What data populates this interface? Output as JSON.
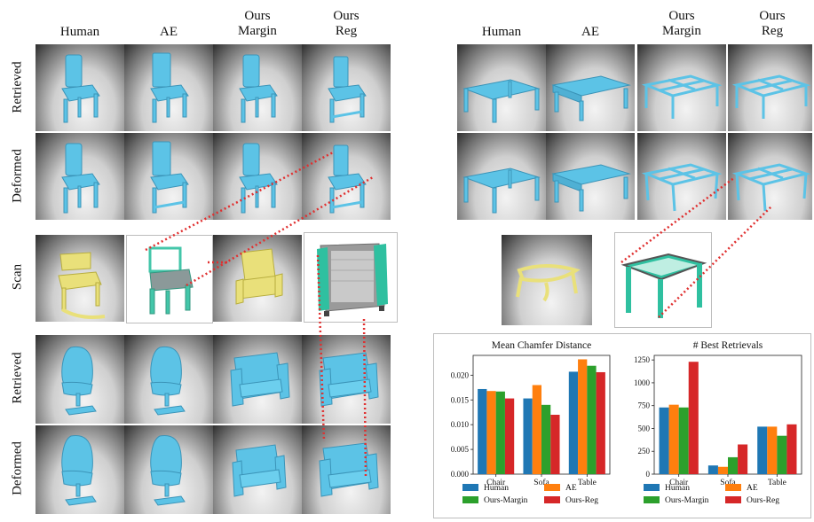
{
  "left_columns": [
    {
      "id": "human",
      "lines": [
        "Human"
      ]
    },
    {
      "id": "ae",
      "lines": [
        "AE"
      ]
    },
    {
      "id": "margin",
      "lines": [
        "Ours",
        "Margin"
      ]
    },
    {
      "id": "reg",
      "lines": [
        "Ours",
        "Reg"
      ]
    }
  ],
  "right_columns": [
    {
      "id": "human",
      "lines": [
        "Human"
      ]
    },
    {
      "id": "ae",
      "lines": [
        "AE"
      ]
    },
    {
      "id": "margin",
      "lines": [
        "Ours",
        "Margin"
      ]
    },
    {
      "id": "reg",
      "lines": [
        "Ours",
        "Reg"
      ]
    }
  ],
  "row_labels": {
    "retrieved": "Retrieved",
    "deformed": "Deformed",
    "scan": "Scan"
  },
  "colors": {
    "shape": "#5cc3e6",
    "shape_dark": "#3b94b8",
    "scan_yellow": "#e9e07a",
    "scan_mesh": "#2fc0a0",
    "match_line": "#e03030",
    "human": "#1f77b4",
    "ae": "#ff7f0e",
    "ours_margin": "#2ca02c",
    "ours_reg": "#d62728"
  },
  "chart_data": [
    {
      "type": "bar",
      "title": "Mean Chamfer Distance",
      "categories": [
        "Chair",
        "Sofa",
        "Table"
      ],
      "ylim": [
        0,
        0.024
      ],
      "yticks": [
        "0.000",
        "0.005",
        "0.010",
        "0.015",
        "0.020"
      ],
      "ytick_values": [
        0,
        0.005,
        0.01,
        0.015,
        0.02
      ],
      "series": [
        {
          "name": "Human",
          "color": "#1f77b4",
          "values": [
            0.0172,
            0.0153,
            0.0207
          ]
        },
        {
          "name": "AE",
          "color": "#ff7f0e",
          "values": [
            0.0168,
            0.018,
            0.0232
          ]
        },
        {
          "name": "Ours-Margin",
          "color": "#2ca02c",
          "values": [
            0.0167,
            0.014,
            0.0219
          ]
        },
        {
          "name": "Ours-Reg",
          "color": "#d62728",
          "values": [
            0.0153,
            0.012,
            0.0206
          ]
        }
      ]
    },
    {
      "type": "bar",
      "title": "# Best Retrievals",
      "categories": [
        "Chair",
        "Sofa",
        "Table"
      ],
      "ylim": [
        0,
        1300
      ],
      "yticks": [
        "0",
        "250",
        "500",
        "750",
        "1000",
        "1250"
      ],
      "ytick_values": [
        0,
        250,
        500,
        750,
        1000,
        1250
      ],
      "series": [
        {
          "name": "Human",
          "color": "#1f77b4",
          "values": [
            730,
            95,
            520
          ]
        },
        {
          "name": "AE",
          "color": "#ff7f0e",
          "values": [
            760,
            80,
            520
          ]
        },
        {
          "name": "Ours-Margin",
          "color": "#2ca02c",
          "values": [
            730,
            185,
            420
          ]
        },
        {
          "name": "Ours-Reg",
          "color": "#d62728",
          "values": [
            1230,
            325,
            545
          ]
        }
      ]
    }
  ],
  "legend": [
    {
      "name": "Human",
      "color": "#1f77b4"
    },
    {
      "name": "AE",
      "color": "#ff7f0e"
    },
    {
      "name": "Ours-Margin",
      "color": "#2ca02c"
    },
    {
      "name": "Ours-Reg",
      "color": "#d62728"
    }
  ]
}
